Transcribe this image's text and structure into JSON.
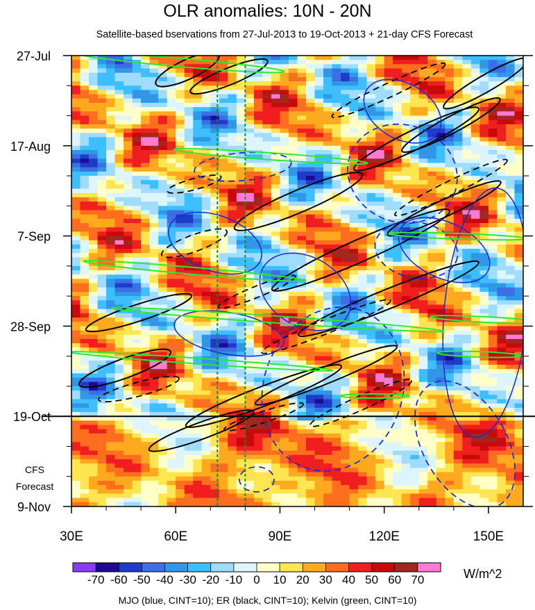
{
  "chart_data": {
    "type": "heatmap",
    "title": "OLR anomalies: 10N - 20N",
    "subtitle": "Satellite-based bservations from 27-Jul-2013 to 19-Oct-2013 + 21-day CFS Forecast",
    "x_axis": {
      "ticks": [
        "30E",
        "60E",
        "90E",
        "120E",
        "150E"
      ],
      "range": [
        30,
        160
      ]
    },
    "y_axis": {
      "ticks": [
        "27-Jul",
        "17-Aug",
        "7-Sep",
        "28-Sep",
        "19-Oct",
        "9-Nov"
      ],
      "direction": "time increases downward"
    },
    "forecast_label": [
      "CFS",
      "Forecast"
    ],
    "observation_end": "19-Oct",
    "reference_lines": {
      "longitudes": [
        72,
        80
      ],
      "style": "green dashed"
    },
    "colorbar": {
      "labels": [
        "-70",
        "-60",
        "-50",
        "-40",
        "-30",
        "-20",
        "-10",
        "0",
        "10",
        "20",
        "30",
        "40",
        "50",
        "60",
        "70"
      ],
      "colors": [
        "#8a3cf0",
        "#1e0a96",
        "#1e3cc8",
        "#3c6ee6",
        "#3296e6",
        "#3cbeff",
        "#a0dcff",
        "#dcf5ff",
        "#ffffc8",
        "#ffe650",
        "#ffaa1e",
        "#ff6e1e",
        "#f01e1e",
        "#c80a0a",
        "#a0281e",
        "#ff7ad2"
      ],
      "units": "W/m^2"
    },
    "contours": {
      "legend": "MJO (blue, CINT=10); ER (black, CINT=10); Kelvin (green, CINT=10)",
      "mjo_color": "#1e2cd2",
      "er_color": "#000000",
      "kelvin_color": "#2ee82e"
    }
  }
}
